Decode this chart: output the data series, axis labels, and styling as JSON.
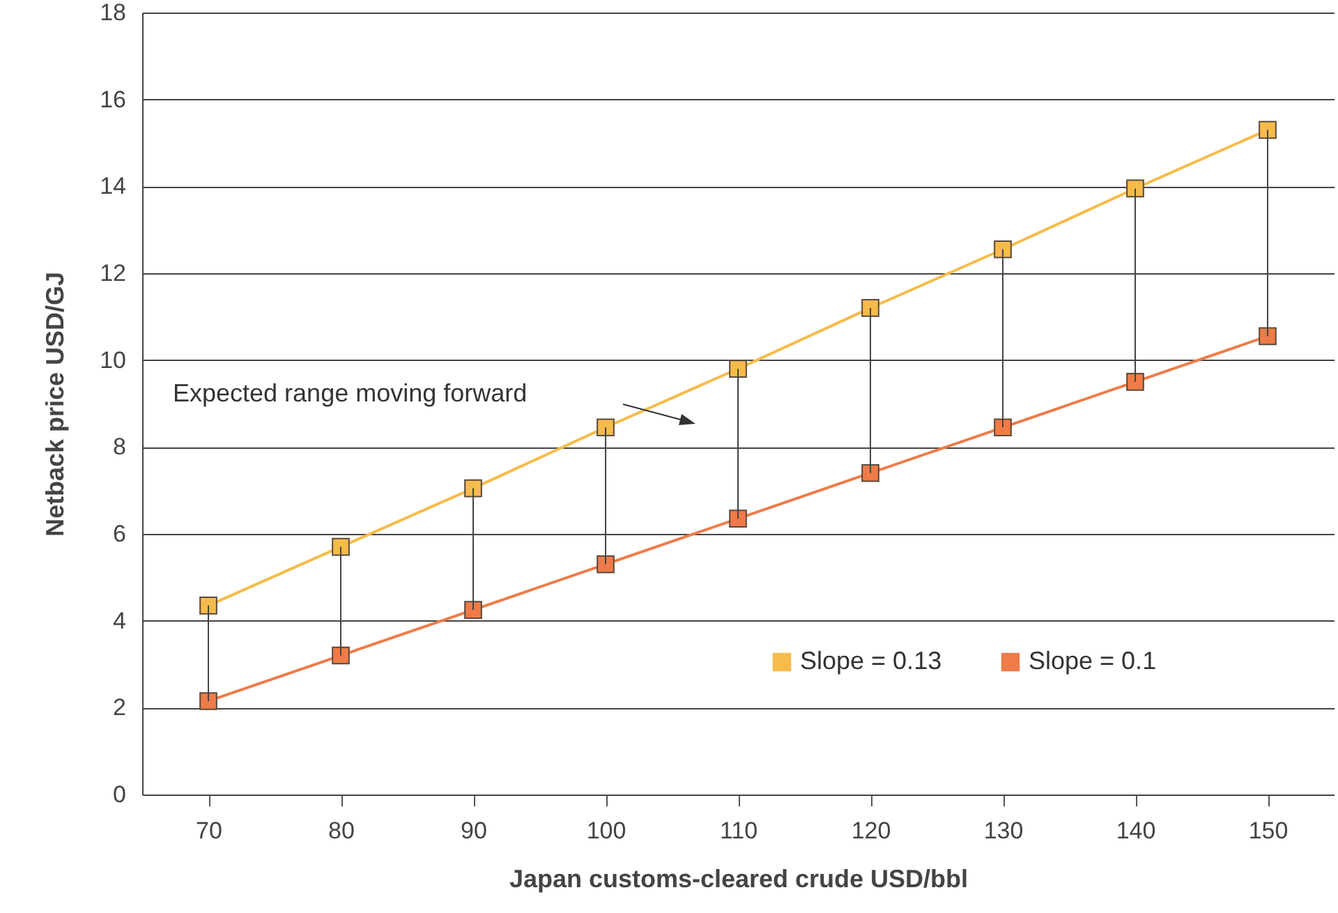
{
  "chart_data": {
    "type": "line",
    "xlabel": "Japan customs-cleared crude USD/bbl",
    "ylabel": "Netback price USD/GJ",
    "x": [
      70,
      80,
      90,
      100,
      110,
      120,
      130,
      140,
      150
    ],
    "series": [
      {
        "name": "Slope = 0.13",
        "color": "#f6bb4a",
        "values": [
          4.35,
          5.7,
          7.05,
          8.45,
          9.8,
          11.2,
          12.55,
          13.95,
          15.3
        ],
        "errors": [
          [
            2.15,
            4.35
          ],
          [
            3.2,
            5.7
          ],
          [
            4.25,
            7.05
          ],
          [
            5.3,
            8.45
          ],
          [
            6.35,
            9.8
          ],
          [
            7.4,
            11.2
          ],
          [
            8.45,
            12.55
          ],
          [
            9.5,
            13.95
          ],
          [
            10.55,
            15.3
          ]
        ]
      },
      {
        "name": "Slope = 0.1",
        "color": "#ef7b48",
        "values": [
          2.15,
          3.2,
          4.25,
          5.3,
          6.35,
          7.4,
          8.45,
          9.5,
          10.55
        ]
      }
    ],
    "annotations": [
      "Expected range moving forward"
    ],
    "xlim": [
      65,
      155
    ],
    "xticks": [
      70,
      80,
      90,
      100,
      110,
      120,
      130,
      140,
      150
    ],
    "ylim": [
      0,
      18
    ],
    "yticks": [
      0,
      2,
      4,
      6,
      8,
      10,
      12,
      14,
      16,
      18
    ],
    "grid": "y",
    "legend": "bottom right",
    "marker": "square",
    "line_style": "solid"
  }
}
